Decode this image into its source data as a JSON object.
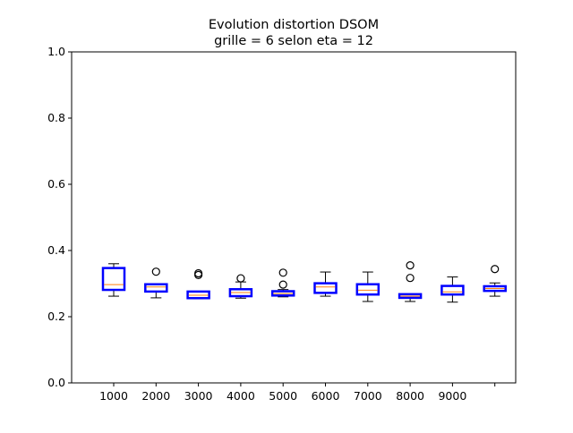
{
  "chart_data": {
    "type": "boxplot",
    "title": "Evolution distortion DSOM",
    "subtitle": "grille = 6 selon eta = 12",
    "xlabel": "",
    "ylabel": "",
    "ylim": [
      0,
      1
    ],
    "yticks": [
      "0.0",
      "0.2",
      "0.4",
      "0.6",
      "0.8",
      "1.0"
    ],
    "grid": false,
    "colors": {
      "box": "#0000ff",
      "median": "#ff7f0e",
      "whisker": "#000000",
      "outlier": "#000000",
      "axes": "#000000"
    },
    "boxes": [
      {
        "label": "1000",
        "q1": 0.281,
        "median": 0.297,
        "q3": 0.347,
        "whislo": 0.262,
        "whishi": 0.36,
        "fliers": []
      },
      {
        "label": "2000",
        "q1": 0.276,
        "median": 0.29,
        "q3": 0.298,
        "whislo": 0.257,
        "whishi": 0.298,
        "fliers": [
          0.336
        ]
      },
      {
        "label": "3000",
        "q1": 0.256,
        "median": 0.265,
        "q3": 0.276,
        "whislo": 0.254,
        "whishi": 0.276,
        "fliers": [
          0.326,
          0.331
        ]
      },
      {
        "label": "4000",
        "q1": 0.262,
        "median": 0.273,
        "q3": 0.283,
        "whislo": 0.256,
        "whishi": 0.305,
        "fliers": [
          0.316
        ]
      },
      {
        "label": "5000",
        "q1": 0.264,
        "median": 0.27,
        "q3": 0.277,
        "whislo": 0.26,
        "whishi": 0.282,
        "fliers": [
          0.297,
          0.333
        ]
      },
      {
        "label": "6000",
        "q1": 0.272,
        "median": 0.29,
        "q3": 0.301,
        "whislo": 0.262,
        "whishi": 0.335,
        "fliers": []
      },
      {
        "label": "7000",
        "q1": 0.267,
        "median": 0.28,
        "q3": 0.298,
        "whislo": 0.246,
        "whishi": 0.335,
        "fliers": []
      },
      {
        "label": "8000",
        "q1": 0.257,
        "median": 0.262,
        "q3": 0.268,
        "whislo": 0.246,
        "whishi": 0.268,
        "fliers": [
          0.317,
          0.355
        ]
      },
      {
        "label": "9000",
        "q1": 0.267,
        "median": 0.275,
        "q3": 0.293,
        "whislo": 0.244,
        "whishi": 0.32,
        "fliers": []
      },
      {
        "label": "",
        "q1": 0.278,
        "median": 0.285,
        "q3": 0.292,
        "whislo": 0.262,
        "whishi": 0.302,
        "fliers": [
          0.344
        ]
      }
    ]
  }
}
